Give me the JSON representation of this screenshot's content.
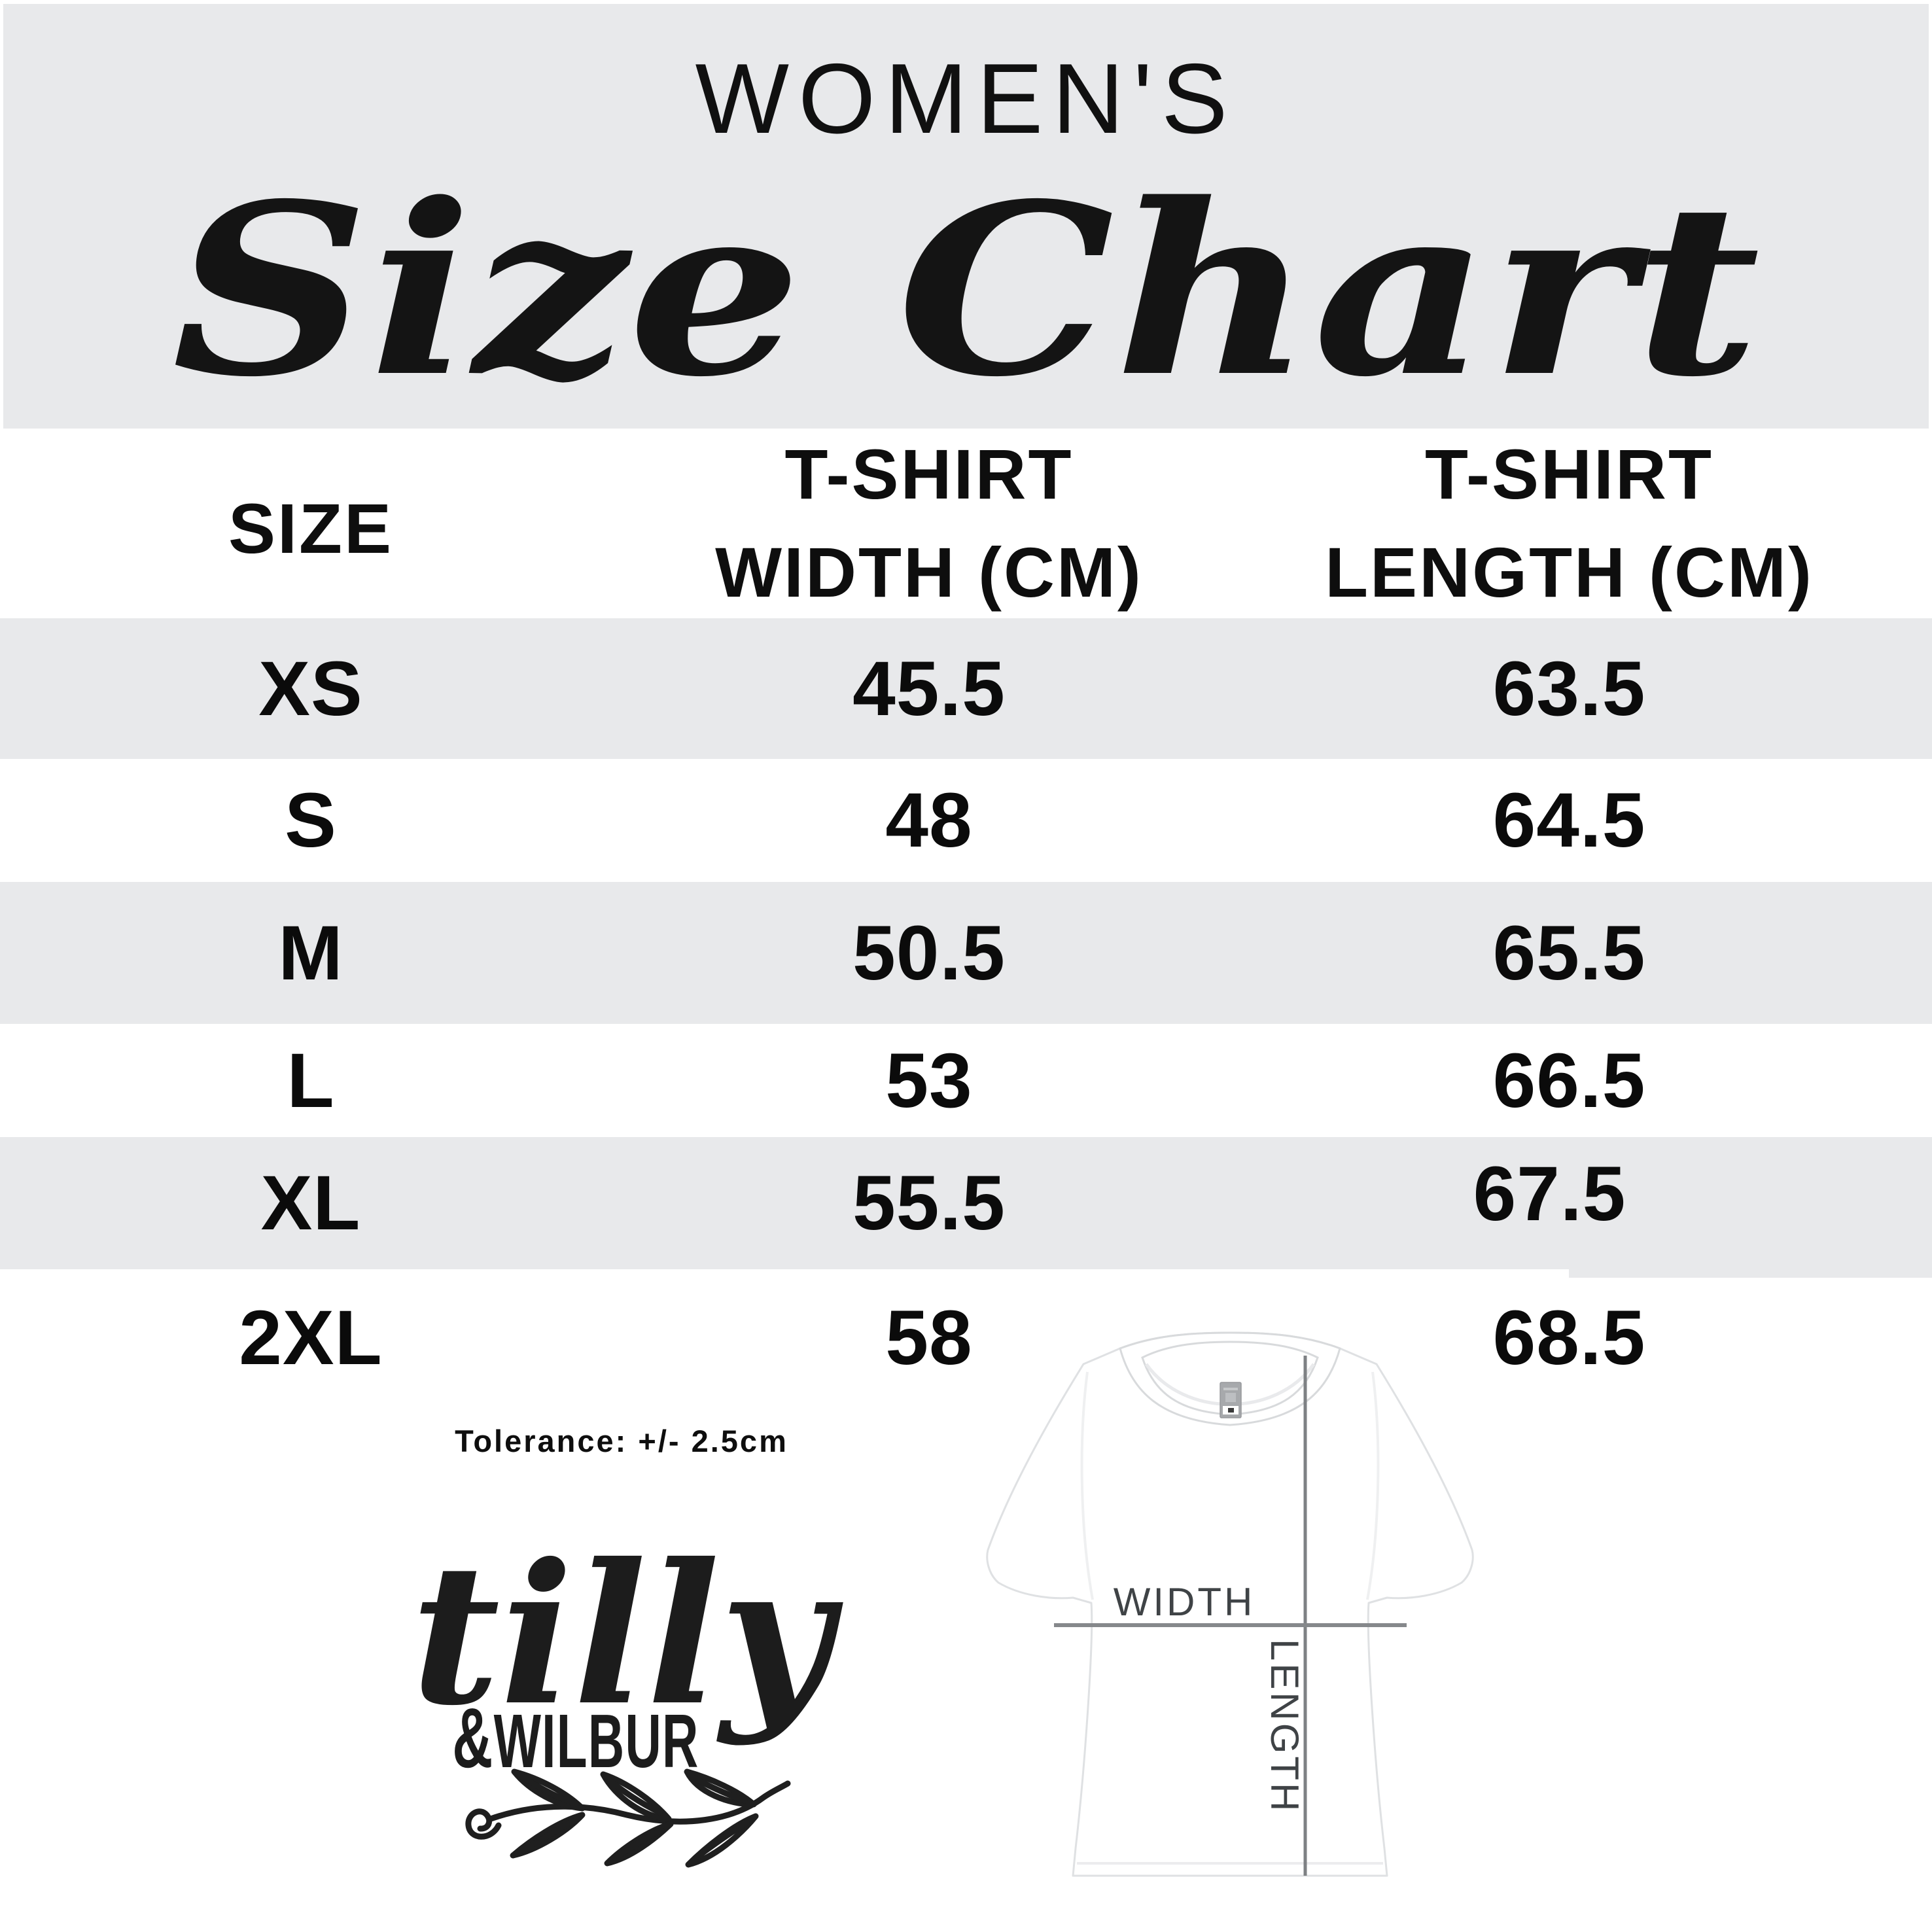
{
  "header": {
    "kicker": "WOMEN'S",
    "title": "Size Chart"
  },
  "table": {
    "header": {
      "size": "SIZE",
      "width_l1": "T-SHIRT",
      "width_l2": "WIDTH (CM)",
      "length_l1": "T-SHIRT",
      "length_l2": "LENGTH (CM)"
    },
    "rows": [
      {
        "size": "XS",
        "width": "45.5",
        "length": "63.5"
      },
      {
        "size": "S",
        "width": "48",
        "length": "64.5"
      },
      {
        "size": "M",
        "width": "50.5",
        "length": "65.5"
      },
      {
        "size": "L",
        "width": "53",
        "length": "66.5"
      },
      {
        "size": "XL",
        "width": "55.5",
        "length": "67.5"
      },
      {
        "size": "2XL",
        "width": "58",
        "length": "68.5"
      }
    ]
  },
  "notes": {
    "tolerance": "Tolerance: +/- 2.5cm"
  },
  "brand": {
    "script": "tilly",
    "caps": "&WILBUR"
  },
  "diagram": {
    "width_label": "WIDTH",
    "length_label": "LENGTH"
  },
  "colors": {
    "band_gray": "#e8e9eb",
    "ink": "#0c0c0c",
    "measure_line": "#7e8184",
    "diagram_label": "#3f4346"
  },
  "chart_data": {
    "type": "table",
    "title": "Women's Size Chart",
    "columns": [
      "SIZE",
      "T-SHIRT WIDTH (CM)",
      "T-SHIRT LENGTH (CM)"
    ],
    "rows": [
      [
        "XS",
        45.5,
        63.5
      ],
      [
        "S",
        48,
        64.5
      ],
      [
        "M",
        50.5,
        65.5
      ],
      [
        "L",
        53,
        66.5
      ],
      [
        "XL",
        55.5,
        67.5
      ],
      [
        "2XL",
        58,
        68.5
      ]
    ],
    "tolerance_cm": 2.5
  }
}
